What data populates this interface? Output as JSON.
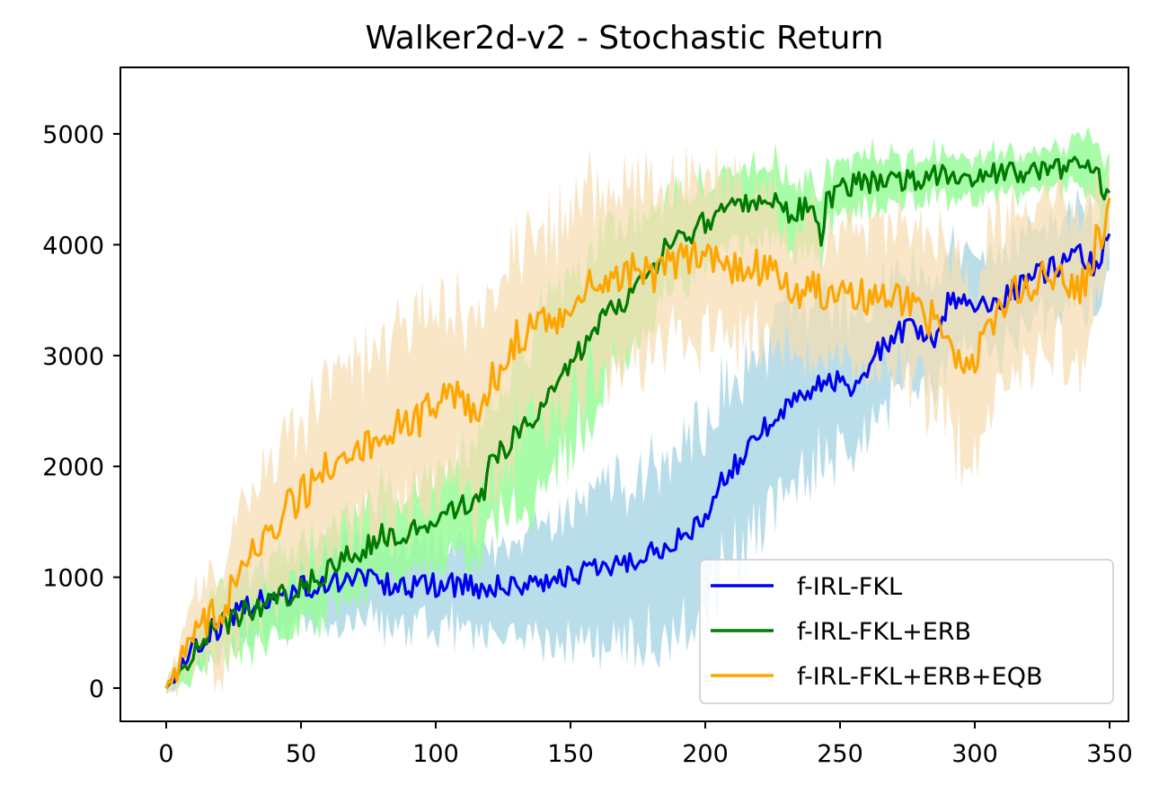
{
  "chart_data": {
    "type": "line",
    "title": "Walker2d-v2 - Stochastic Return",
    "xlabel": "",
    "ylabel": "",
    "xlim": [
      -17,
      357
    ],
    "ylim": [
      -300,
      5600
    ],
    "x_ticks": [
      0,
      50,
      100,
      150,
      200,
      250,
      300,
      350
    ],
    "y_ticks": [
      0,
      1000,
      2000,
      3000,
      4000,
      5000
    ],
    "grid": false,
    "legend_position": "lower-right",
    "series": [
      {
        "name": "f-IRL-FKL",
        "color": "#0000ee",
        "band_color": "#add8e6",
        "anchors": [
          [
            0,
            0
          ],
          [
            5,
            150
          ],
          [
            10,
            350
          ],
          [
            15,
            480
          ],
          [
            20,
            560
          ],
          [
            25,
            680
          ],
          [
            30,
            740
          ],
          [
            40,
            820
          ],
          [
            50,
            900
          ],
          [
            60,
            940
          ],
          [
            70,
            990
          ],
          [
            80,
            960
          ],
          [
            90,
            900
          ],
          [
            100,
            930
          ],
          [
            110,
            920
          ],
          [
            120,
            900
          ],
          [
            130,
            940
          ],
          [
            138,
            900
          ],
          [
            140,
            980
          ],
          [
            150,
            1000
          ],
          [
            160,
            1060
          ],
          [
            170,
            1120
          ],
          [
            180,
            1230
          ],
          [
            190,
            1330
          ],
          [
            195,
            1400
          ],
          [
            200,
            1560
          ],
          [
            205,
            1800
          ],
          [
            210,
            1960
          ],
          [
            215,
            2160
          ],
          [
            220,
            2300
          ],
          [
            230,
            2520
          ],
          [
            240,
            2700
          ],
          [
            245,
            2760
          ],
          [
            250,
            2750
          ],
          [
            255,
            2650
          ],
          [
            260,
            2900
          ],
          [
            265,
            3050
          ],
          [
            270,
            3200
          ],
          [
            275,
            3230
          ],
          [
            280,
            3250
          ],
          [
            285,
            3100
          ],
          [
            290,
            3500
          ],
          [
            300,
            3450
          ],
          [
            310,
            3520
          ],
          [
            320,
            3680
          ],
          [
            330,
            3800
          ],
          [
            340,
            3900
          ],
          [
            345,
            3800
          ],
          [
            350,
            4080
          ]
        ],
        "band_anchors": [
          [
            0,
            60
          ],
          [
            10,
            120
          ],
          [
            20,
            200
          ],
          [
            30,
            240
          ],
          [
            50,
            280
          ],
          [
            80,
            300
          ],
          [
            110,
            320
          ],
          [
            130,
            360
          ],
          [
            150,
            500
          ],
          [
            165,
            600
          ],
          [
            180,
            650
          ],
          [
            200,
            700
          ],
          [
            215,
            720
          ],
          [
            230,
            650
          ],
          [
            250,
            550
          ],
          [
            270,
            450
          ],
          [
            290,
            400
          ],
          [
            320,
            350
          ],
          [
            350,
            320
          ]
        ]
      },
      {
        "name": "f-IRL-FKL+ERB",
        "color": "#007a00",
        "band_color": "#98fb98",
        "anchors": [
          [
            0,
            0
          ],
          [
            5,
            150
          ],
          [
            10,
            330
          ],
          [
            15,
            460
          ],
          [
            20,
            560
          ],
          [
            30,
            700
          ],
          [
            40,
            800
          ],
          [
            50,
            900
          ],
          [
            60,
            1080
          ],
          [
            70,
            1220
          ],
          [
            80,
            1380
          ],
          [
            90,
            1420
          ],
          [
            100,
            1530
          ],
          [
            110,
            1640
          ],
          [
            118,
            1800
          ],
          [
            120,
            2200
          ],
          [
            125,
            2100
          ],
          [
            130,
            2300
          ],
          [
            140,
            2550
          ],
          [
            145,
            2700
          ],
          [
            150,
            2950
          ],
          [
            160,
            3250
          ],
          [
            165,
            3400
          ],
          [
            170,
            3450
          ],
          [
            180,
            3750
          ],
          [
            185,
            3950
          ],
          [
            190,
            4050
          ],
          [
            200,
            4200
          ],
          [
            210,
            4380
          ],
          [
            220,
            4400
          ],
          [
            225,
            4450
          ],
          [
            230,
            4300
          ],
          [
            235,
            4320
          ],
          [
            240,
            4400
          ],
          [
            243,
            3950
          ],
          [
            245,
            4400
          ],
          [
            250,
            4500
          ],
          [
            260,
            4560
          ],
          [
            270,
            4570
          ],
          [
            280,
            4600
          ],
          [
            290,
            4610
          ],
          [
            300,
            4620
          ],
          [
            310,
            4640
          ],
          [
            320,
            4650
          ],
          [
            330,
            4680
          ],
          [
            340,
            4700
          ],
          [
            345,
            4620
          ],
          [
            350,
            4420
          ]
        ],
        "band_anchors": [
          [
            0,
            60
          ],
          [
            10,
            150
          ],
          [
            20,
            250
          ],
          [
            40,
            300
          ],
          [
            60,
            320
          ],
          [
            90,
            340
          ],
          [
            110,
            380
          ],
          [
            120,
            500
          ],
          [
            140,
            650
          ],
          [
            160,
            600
          ],
          [
            180,
            400
          ],
          [
            200,
            300
          ],
          [
            230,
            280
          ],
          [
            260,
            200
          ],
          [
            300,
            150
          ],
          [
            330,
            140
          ],
          [
            350,
            250
          ]
        ]
      },
      {
        "name": "f-IRL-FKL+ERB+EQB",
        "color": "#ffa500",
        "band_color": "#f5deb3",
        "anchors": [
          [
            0,
            0
          ],
          [
            5,
            200
          ],
          [
            10,
            450
          ],
          [
            15,
            600
          ],
          [
            20,
            700
          ],
          [
            25,
            900
          ],
          [
            30,
            1100
          ],
          [
            35,
            1350
          ],
          [
            40,
            1500
          ],
          [
            45,
            1600
          ],
          [
            50,
            1750
          ],
          [
            55,
            1900
          ],
          [
            60,
            2000
          ],
          [
            65,
            2150
          ],
          [
            70,
            2200
          ],
          [
            75,
            2200
          ],
          [
            80,
            2300
          ],
          [
            85,
            2350
          ],
          [
            90,
            2380
          ],
          [
            95,
            2450
          ],
          [
            100,
            2500
          ],
          [
            105,
            2620
          ],
          [
            110,
            2600
          ],
          [
            115,
            2450
          ],
          [
            120,
            2700
          ],
          [
            125,
            2950
          ],
          [
            130,
            3150
          ],
          [
            135,
            3300
          ],
          [
            140,
            3280
          ],
          [
            145,
            3350
          ],
          [
            150,
            3450
          ],
          [
            155,
            3550
          ],
          [
            160,
            3700
          ],
          [
            165,
            3700
          ],
          [
            170,
            3750
          ],
          [
            180,
            3750
          ],
          [
            190,
            3850
          ],
          [
            200,
            3850
          ],
          [
            210,
            3800
          ],
          [
            220,
            3800
          ],
          [
            230,
            3600
          ],
          [
            240,
            3600
          ],
          [
            250,
            3500
          ],
          [
            260,
            3500
          ],
          [
            270,
            3550
          ],
          [
            275,
            3480
          ],
          [
            280,
            3450
          ],
          [
            285,
            3300
          ],
          [
            290,
            3100
          ],
          [
            295,
            2900
          ],
          [
            300,
            2950
          ],
          [
            305,
            3200
          ],
          [
            310,
            3350
          ],
          [
            315,
            3550
          ],
          [
            320,
            3650
          ],
          [
            325,
            3750
          ],
          [
            330,
            3700
          ],
          [
            335,
            3700
          ],
          [
            340,
            3650
          ],
          [
            345,
            4000
          ],
          [
            350,
            4280
          ]
        ],
        "band_anchors": [
          [
            0,
            60
          ],
          [
            10,
            250
          ],
          [
            20,
            400
          ],
          [
            40,
            550
          ],
          [
            60,
            650
          ],
          [
            100,
            700
          ],
          [
            130,
            750
          ],
          [
            160,
            700
          ],
          [
            200,
            600
          ],
          [
            230,
            500
          ],
          [
            260,
            500
          ],
          [
            280,
            600
          ],
          [
            300,
            700
          ],
          [
            320,
            600
          ],
          [
            340,
            550
          ],
          [
            350,
            300
          ]
        ]
      }
    ]
  }
}
